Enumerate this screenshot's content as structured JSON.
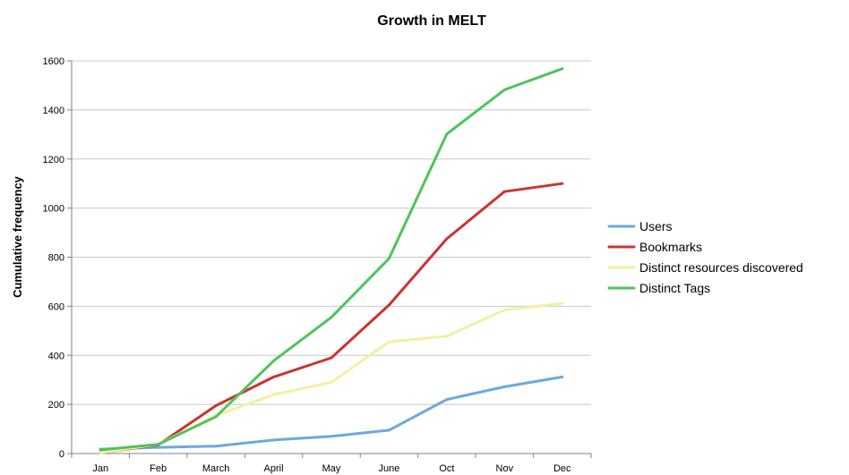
{
  "chart_data": {
    "type": "line",
    "title": "Growth in MELT",
    "xlabel": "",
    "ylabel": "Cumulative frequency",
    "ylim": [
      0,
      1600
    ],
    "yticks": [
      0,
      200,
      400,
      600,
      800,
      1000,
      1200,
      1400,
      1600
    ],
    "grid": true,
    "legend_position": "right",
    "categories": [
      "Jan",
      "Feb",
      "March",
      "April",
      "May",
      "June",
      "Oct",
      "Nov",
      "Dec"
    ],
    "series": [
      {
        "name": "Users",
        "color": "#6fa8dc",
        "values": [
          18,
          25,
          30,
          55,
          70,
          95,
          220,
          272,
          312
        ]
      },
      {
        "name": "Bookmarks",
        "color": "#cc3333",
        "values": [
          3,
          35,
          195,
          312,
          390,
          605,
          875,
          1067,
          1100
        ]
      },
      {
        "name": "Distinct resources discovered",
        "color": "#f2f0a0",
        "values": [
          3,
          38,
          155,
          240,
          290,
          455,
          478,
          585,
          612
        ]
      },
      {
        "name": "Distinct Tags",
        "color": "#4cc55c",
        "values": [
          15,
          37,
          150,
          378,
          555,
          795,
          1302,
          1482,
          1568
        ]
      }
    ]
  }
}
